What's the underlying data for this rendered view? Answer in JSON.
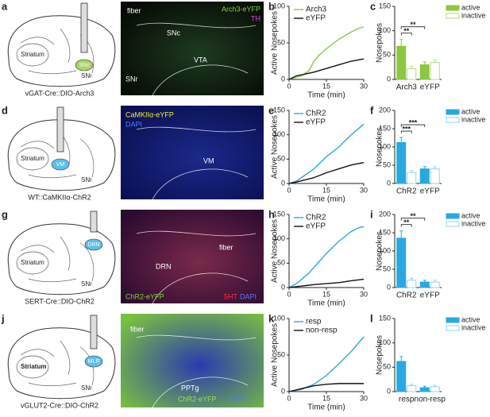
{
  "panels": [
    {
      "letter": "a",
      "labels": [
        "Striatum",
        "SNr"
      ],
      "region": "SNc",
      "region_color": "#a6d467",
      "caption": "vGAT-Cre::DIO-Arch3",
      "image_bg": [
        "#1e3a1e",
        "#050a05"
      ],
      "image_labels": [
        {
          "text": "fiber",
          "color": "#ffffff"
        },
        {
          "text": "Arch3-eYFP",
          "color": "#7fd43a"
        },
        {
          "text": "TH",
          "color": "#e040e0"
        },
        {
          "text": "SNc",
          "color": "#ffffff"
        },
        {
          "text": "VTA",
          "color": "#ffffff"
        },
        {
          "text": "SNr",
          "color": "#ffffff"
        }
      ]
    },
    {
      "letter": "d",
      "labels": [
        "Striatum",
        "SNr"
      ],
      "region": "VM",
      "region_color": "#5bc0eb",
      "caption": "WT::CaMKIIα-ChR2",
      "image_bg": [
        "#1a2a8a",
        "#0a0f50"
      ],
      "image_labels": [
        {
          "text": "CaMKIIα-eYFP",
          "color": "#f0f040"
        },
        {
          "text": "DAPI",
          "color": "#4a7dff"
        },
        {
          "text": "VM",
          "color": "#ffffff"
        }
      ]
    },
    {
      "letter": "g",
      "labels": [
        "Striatum",
        "SNr"
      ],
      "region": "DRN",
      "region_color": "#5bc0eb",
      "caption": "SERT-Cre::DIO-ChR2",
      "image_bg": [
        "#7a2a4a",
        "#2a0a30"
      ],
      "image_labels": [
        {
          "text": "fiber",
          "color": "#ffffff"
        },
        {
          "text": "DRN",
          "color": "#ffffff"
        },
        {
          "text": "ChR2-eYFP",
          "color": "#7fd43a"
        },
        {
          "text": "5HT",
          "color": "#ff3030"
        },
        {
          "text": "DAPI",
          "color": "#4a7dff"
        }
      ]
    },
    {
      "letter": "j",
      "labels": [
        "Striatum",
        "SNr"
      ],
      "region": "MLR",
      "region_color": "#5bc0eb",
      "caption": "vGLUT2-Cre::DIO-ChR2",
      "image_bg": [
        "#2a3ab0",
        "#7ac040"
      ],
      "image_labels": [
        {
          "text": "fiber",
          "color": "#ffffff"
        },
        {
          "text": "PPTg",
          "color": "#ffffff"
        },
        {
          "text": "ChR2-eYFP",
          "color": "#9be05a"
        },
        {
          "text": "DAPI",
          "color": "#4a7dff"
        }
      ]
    }
  ],
  "chart_data": [
    {
      "type": "line",
      "panel_letter": "b",
      "xlabel": "Time (min)",
      "ylabel": "Active Nosepokes",
      "xlim": [
        0,
        30
      ],
      "xticks": [
        0,
        15,
        30
      ],
      "ylim": [
        0,
        100
      ],
      "yticks": [
        0,
        50,
        100
      ],
      "series": [
        {
          "name": "Arch3",
          "color": "#8dc63f",
          "x": [
            0,
            5,
            8,
            10,
            12,
            15,
            20,
            25,
            28,
            30
          ],
          "values": [
            0,
            5,
            12,
            25,
            33,
            42,
            55,
            65,
            70,
            72
          ]
        },
        {
          "name": "eYFP",
          "color": "#111111",
          "x": [
            0,
            3,
            6,
            10,
            15,
            20,
            25,
            30
          ],
          "values": [
            0,
            5,
            7,
            10,
            15,
            20,
            25,
            28
          ]
        }
      ]
    },
    {
      "type": "bar",
      "panel_letter": "c",
      "ylabel": "Nosepokes",
      "categories": [
        "Arch3",
        "eYFP"
      ],
      "ylim": [
        0,
        150
      ],
      "yticks": [
        0,
        50,
        100,
        150
      ],
      "significance": [
        "**",
        "**"
      ],
      "series": [
        {
          "name": "active",
          "color": "#8dc63f",
          "fill": true,
          "values": [
            68,
            30
          ],
          "errors": [
            14,
            6
          ]
        },
        {
          "name": "inactive",
          "color": "#b5dc8a",
          "fill": false,
          "values": [
            22,
            35
          ],
          "errors": [
            5,
            5
          ]
        }
      ]
    },
    {
      "type": "line",
      "panel_letter": "e",
      "xlabel": "Time (min)",
      "ylabel": "Active Nosepokes",
      "xlim": [
        0,
        30
      ],
      "xticks": [
        0,
        15,
        30
      ],
      "ylim": [
        0,
        150
      ],
      "yticks": [
        0,
        50,
        100,
        150
      ],
      "series": [
        {
          "name": "ChR2",
          "color": "#29a8e0",
          "x": [
            0,
            3,
            10,
            15,
            20,
            25,
            30
          ],
          "values": [
            0,
            5,
            30,
            55,
            75,
            100,
            122
          ]
        },
        {
          "name": "eYFP",
          "color": "#111111",
          "x": [
            0,
            3,
            10,
            15,
            20,
            25,
            30
          ],
          "values": [
            0,
            3,
            12,
            22,
            30,
            38,
            43
          ]
        }
      ]
    },
    {
      "type": "bar",
      "panel_letter": "f",
      "ylabel": "Nosepokes",
      "categories": [
        "ChR2",
        "eYFP"
      ],
      "ylim": [
        0,
        200
      ],
      "yticks": [
        0,
        50,
        100,
        150,
        200
      ],
      "significance": [
        "***",
        "***"
      ],
      "series": [
        {
          "name": "active",
          "color": "#29a8e0",
          "fill": true,
          "values": [
            112,
            40
          ],
          "errors": [
            14,
            6
          ]
        },
        {
          "name": "inactive",
          "color": "#8fd3f0",
          "fill": false,
          "values": [
            30,
            40
          ],
          "errors": [
            5,
            6
          ]
        }
      ]
    },
    {
      "type": "line",
      "panel_letter": "h",
      "xlabel": "Time (min)",
      "ylabel": "Active Nosepokes",
      "xlim": [
        0,
        30
      ],
      "xticks": [
        0,
        15,
        30
      ],
      "ylim": [
        0,
        150
      ],
      "yticks": [
        0,
        50,
        100,
        150
      ],
      "series": [
        {
          "name": "ChR2",
          "color": "#29a8e0",
          "x": [
            0,
            3,
            8,
            15,
            20,
            25,
            28,
            30
          ],
          "values": [
            0,
            8,
            30,
            70,
            95,
            115,
            123,
            125
          ]
        },
        {
          "name": "eYFP",
          "color": "#111111",
          "x": [
            0,
            5,
            10,
            15,
            20,
            25,
            30
          ],
          "values": [
            0,
            3,
            6,
            8,
            10,
            14,
            17
          ]
        }
      ]
    },
    {
      "type": "bar",
      "panel_letter": "i",
      "ylabel": "Nosepokes",
      "categories": [
        "ChR2",
        "eYFP"
      ],
      "ylim": [
        0,
        200
      ],
      "yticks": [
        0,
        50,
        100,
        150,
        200
      ],
      "significance": [
        "**",
        "**"
      ],
      "series": [
        {
          "name": "active",
          "color": "#29a8e0",
          "fill": true,
          "values": [
            135,
            15
          ],
          "errors": [
            20,
            5
          ]
        },
        {
          "name": "inactive",
          "color": "#8fd3f0",
          "fill": false,
          "values": [
            20,
            15
          ],
          "errors": [
            5,
            5
          ]
        }
      ]
    },
    {
      "type": "line",
      "panel_letter": "k",
      "xlabel": "Time (min)",
      "ylabel": "Active Nosepokes",
      "xlim": [
        0,
        30
      ],
      "xticks": [
        0,
        15,
        30
      ],
      "ylim": [
        0,
        100
      ],
      "yticks": [
        0,
        50,
        100
      ],
      "series": [
        {
          "name": "resp",
          "color": "#29a8e0",
          "x": [
            0,
            5,
            10,
            15,
            20,
            25,
            30
          ],
          "values": [
            0,
            3,
            10,
            22,
            38,
            55,
            75
          ]
        },
        {
          "name": "non-resp",
          "color": "#111111",
          "x": [
            0,
            5,
            10,
            15,
            20,
            25,
            30
          ],
          "values": [
            0,
            4,
            8,
            10,
            11,
            11,
            11
          ]
        }
      ]
    },
    {
      "type": "bar",
      "panel_letter": "l",
      "ylabel": "Nosepokes",
      "categories": [
        "resp",
        "non-resp"
      ],
      "ylim": [
        0,
        150
      ],
      "yticks": [
        0,
        50,
        100,
        150
      ],
      "significance": [],
      "series": [
        {
          "name": "active",
          "color": "#29a8e0",
          "fill": true,
          "values": [
            62,
            8
          ],
          "errors": [
            10,
            3
          ]
        },
        {
          "name": "inactive",
          "color": "#8fd3f0",
          "fill": false,
          "values": [
            12,
            10
          ],
          "errors": [
            3,
            3
          ]
        }
      ]
    }
  ]
}
